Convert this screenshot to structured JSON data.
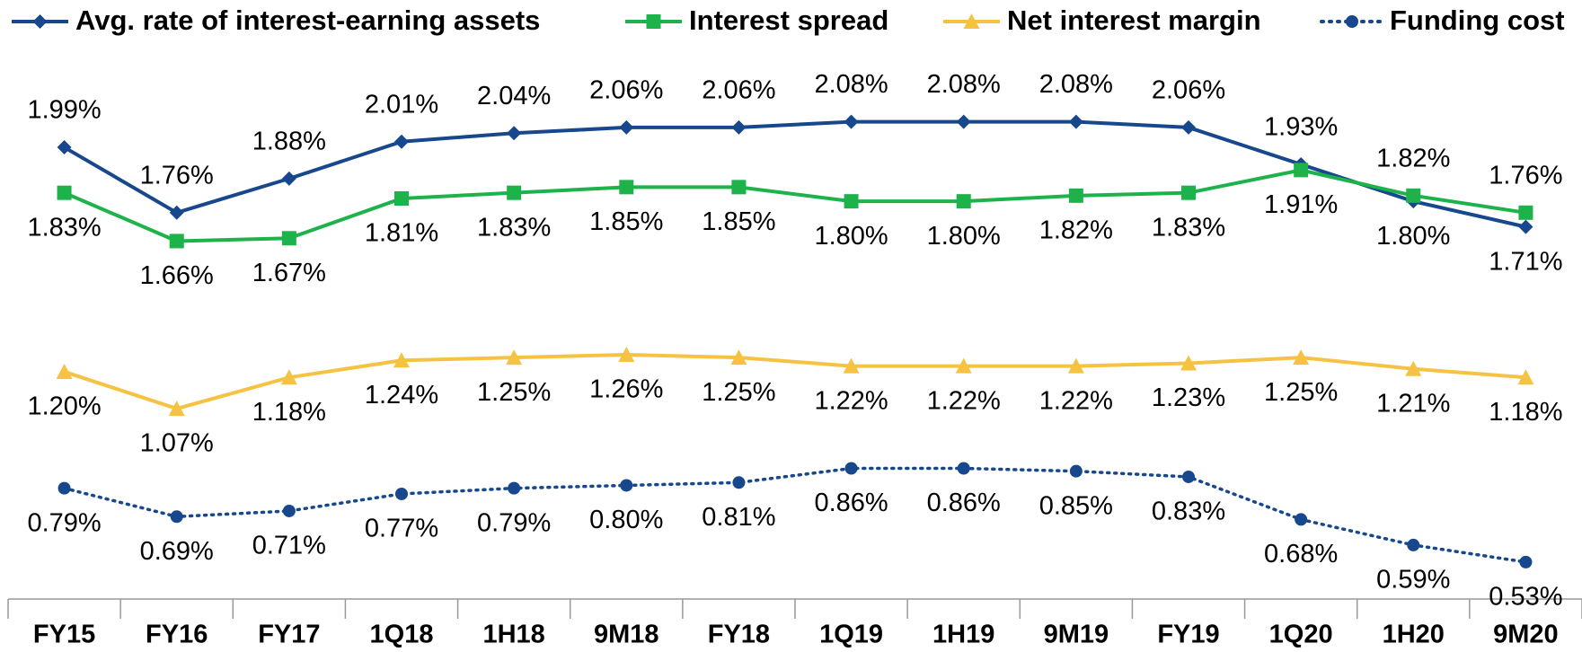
{
  "chart_data": {
    "type": "line",
    "categories": [
      "FY15",
      "FY16",
      "FY17",
      "1Q18",
      "1H18",
      "9M18",
      "FY18",
      "1Q19",
      "1H19",
      "9M19",
      "FY19",
      "1Q20",
      "1H20",
      "9M20"
    ],
    "ylim": [
      0.4,
      2.3
    ],
    "series": [
      {
        "name": "Avg. rate of interest-earning assets",
        "color": "#17478c",
        "marker": "diamond",
        "line_style": "solid",
        "values": [
          1.99,
          1.76,
          1.88,
          2.01,
          2.04,
          2.06,
          2.06,
          2.08,
          2.08,
          2.08,
          2.06,
          1.93,
          1.8,
          1.71
        ],
        "value_labels": [
          "1.99%",
          "1.76%",
          "1.88%",
          "2.01%",
          "2.04%",
          "2.06%",
          "2.06%",
          "2.08%",
          "2.08%",
          "2.08%",
          "2.06%",
          "1.93%",
          "1.80%",
          "1.71%"
        ]
      },
      {
        "name": "Interest spread",
        "color": "#1db34a",
        "marker": "square",
        "line_style": "solid",
        "values": [
          1.83,
          1.66,
          1.67,
          1.81,
          1.83,
          1.85,
          1.85,
          1.8,
          1.8,
          1.82,
          1.83,
          1.91,
          1.82,
          1.76
        ],
        "value_labels": [
          "1.83%",
          "1.66%",
          "1.67%",
          "1.81%",
          "1.83%",
          "1.85%",
          "1.85%",
          "1.80%",
          "1.80%",
          "1.82%",
          "1.83%",
          "1.91%",
          "1.82%",
          "1.76%"
        ]
      },
      {
        "name": "Net interest margin",
        "color": "#f5c242",
        "marker": "triangle",
        "line_style": "solid",
        "values": [
          1.2,
          1.07,
          1.18,
          1.24,
          1.25,
          1.26,
          1.25,
          1.22,
          1.22,
          1.22,
          1.23,
          1.25,
          1.21,
          1.18
        ],
        "value_labels": [
          "1.20%",
          "1.07%",
          "1.18%",
          "1.24%",
          "1.25%",
          "1.26%",
          "1.25%",
          "1.22%",
          "1.22%",
          "1.22%",
          "1.23%",
          "1.25%",
          "1.21%",
          "1.18%"
        ]
      },
      {
        "name": "Funding cost",
        "color": "#17478c",
        "marker": "circle",
        "line_style": "dotted",
        "values": [
          0.79,
          0.69,
          0.71,
          0.77,
          0.79,
          0.8,
          0.81,
          0.86,
          0.86,
          0.85,
          0.83,
          0.68,
          0.59,
          0.53
        ],
        "value_labels": [
          "0.79%",
          "0.69%",
          "0.71%",
          "0.77%",
          "0.79%",
          "0.80%",
          "0.81%",
          "0.86%",
          "0.86%",
          "0.85%",
          "0.83%",
          "0.68%",
          "0.59%",
          "0.53%"
        ]
      }
    ]
  }
}
